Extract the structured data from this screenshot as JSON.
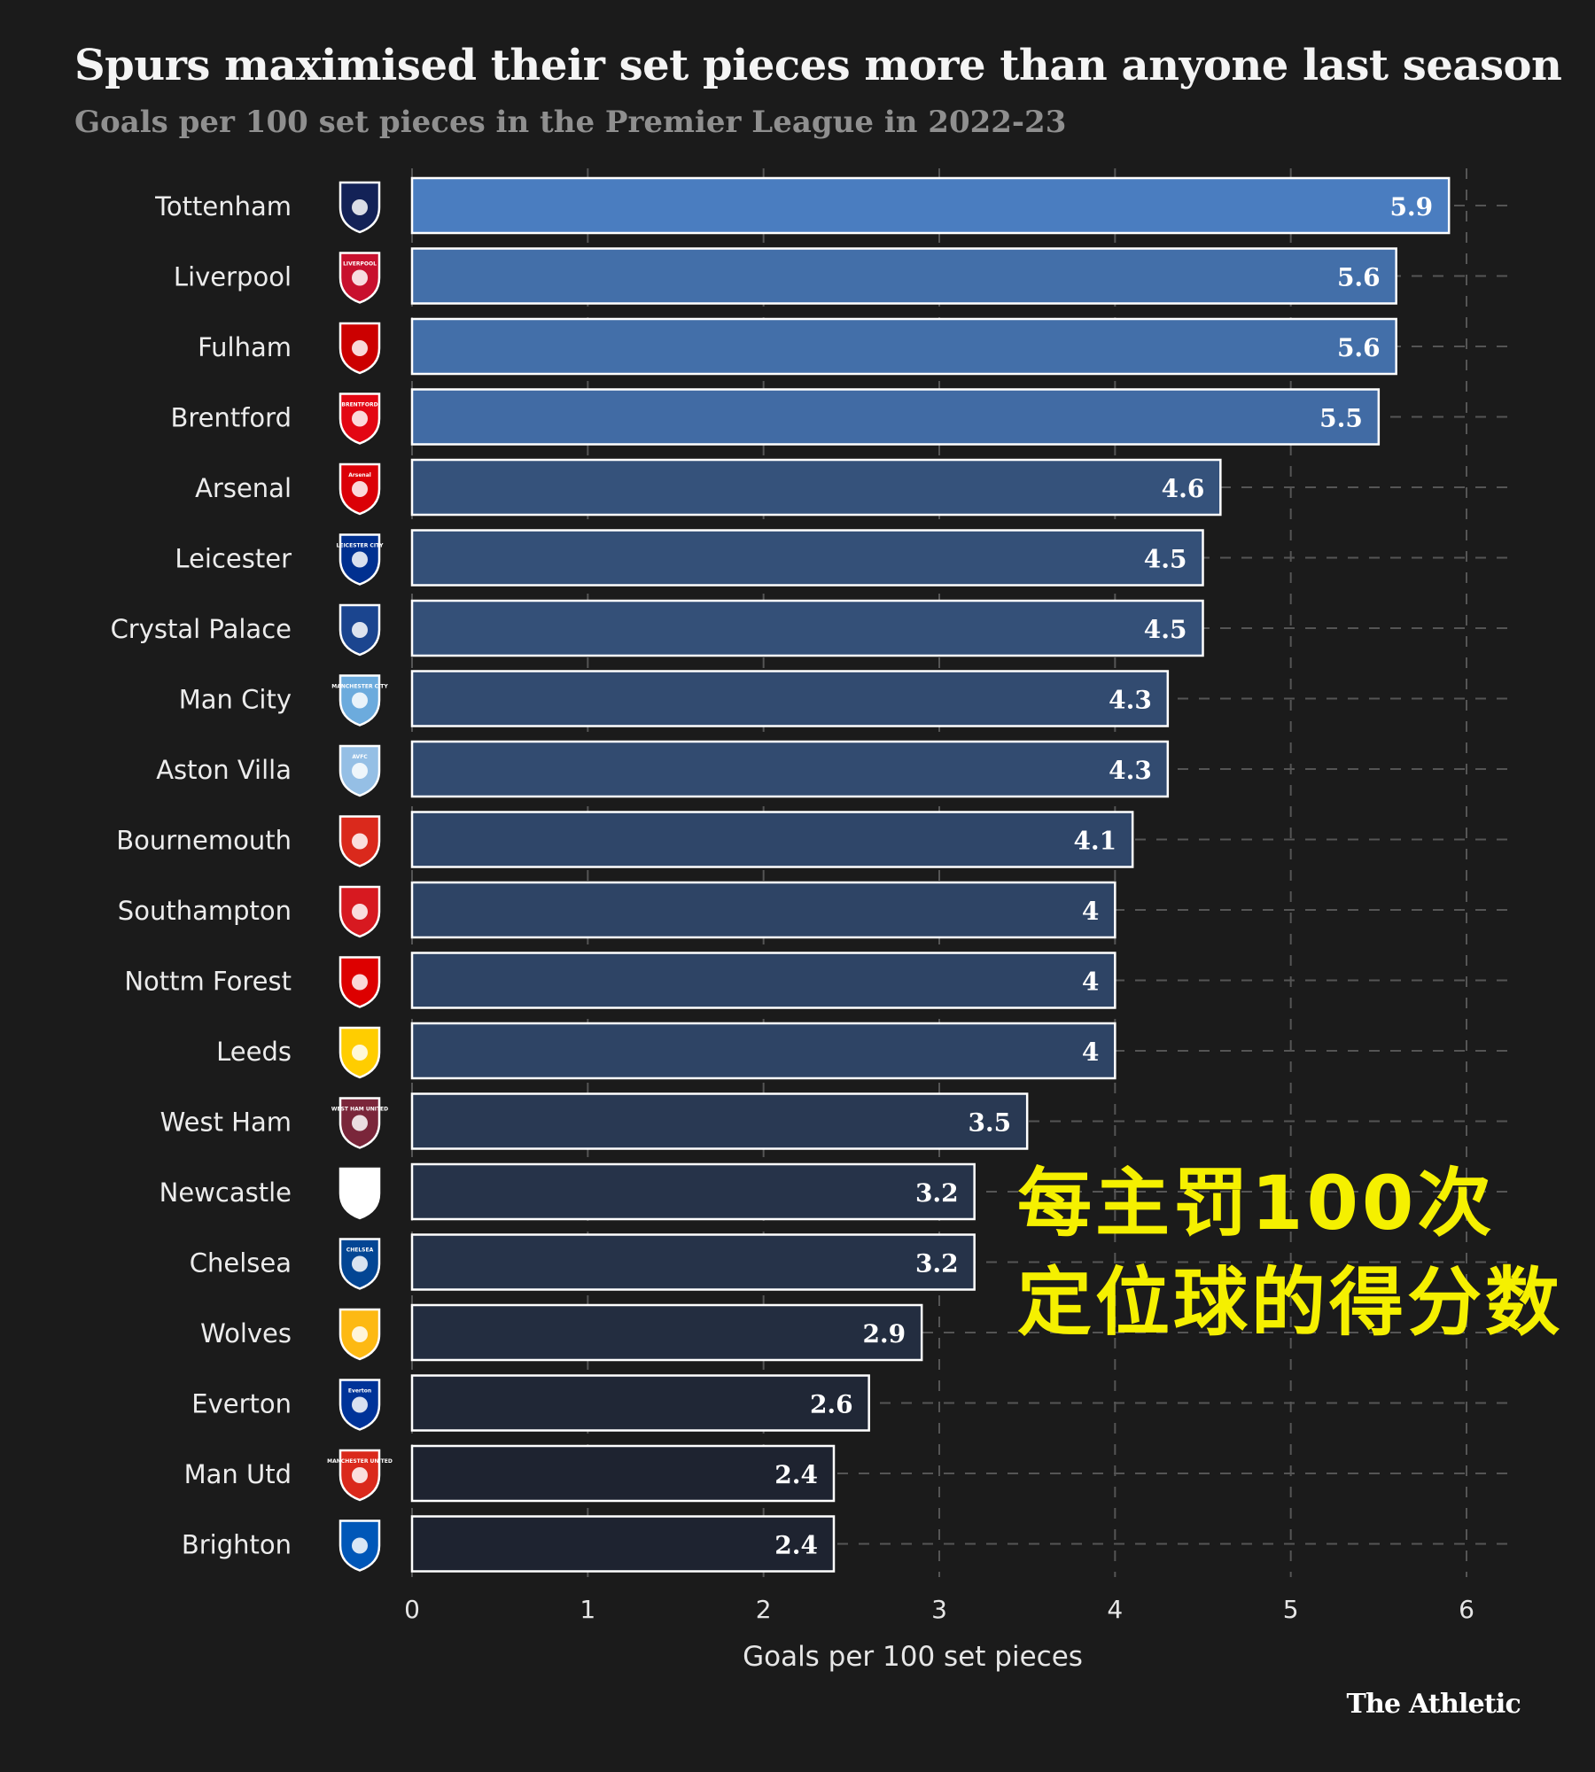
{
  "title": "Spurs maximised their set pieces more than anyone last season",
  "subtitle": "Goals per 100 set pieces in the Premier League in 2022-23",
  "overlay_text": {
    "line1": "每主罚100次",
    "line2": "定位球的得分数"
  },
  "brand": "The Athletic",
  "colors": {
    "background": "#1b1b1b",
    "bar_top": "#4a7dc0",
    "bar_bottom": "#1e2330",
    "bar_outline": "#ffffff",
    "grid": "#555555",
    "overlay": "#f5f000"
  },
  "chart_data": {
    "type": "bar",
    "orientation": "horizontal",
    "xlabel": "Goals per 100 set pieces",
    "xlim": [
      0,
      6
    ],
    "xticks": [
      0,
      1,
      2,
      3,
      4,
      5,
      6
    ],
    "grid": "vertical dashed",
    "categories": [
      "Tottenham",
      "Liverpool",
      "Fulham",
      "Brentford",
      "Arsenal",
      "Leicester",
      "Crystal Palace",
      "Man City",
      "Aston Villa",
      "Bournemouth",
      "Southampton",
      "Nottm Forest",
      "Leeds",
      "West Ham",
      "Newcastle",
      "Chelsea",
      "Wolves",
      "Everton",
      "Man Utd",
      "Brighton"
    ],
    "values": [
      5.9,
      5.6,
      5.6,
      5.5,
      4.6,
      4.5,
      4.5,
      4.3,
      4.3,
      4.1,
      4,
      4,
      4,
      3.5,
      3.2,
      3.2,
      2.9,
      2.6,
      2.4,
      2.4
    ],
    "value_labels": [
      "5.9",
      "5.6",
      "5.6",
      "5.5",
      "4.6",
      "4.5",
      "4.5",
      "4.3",
      "4.3",
      "4.1",
      "4",
      "4",
      "4",
      "3.5",
      "3.2",
      "3.2",
      "2.9",
      "2.6",
      "2.4",
      "2.4"
    ],
    "crests": [
      {
        "icon": "tottenham-crest-icon",
        "color": "#132257",
        "text": ""
      },
      {
        "icon": "liverpool-crest-icon",
        "color": "#c8102e",
        "text": "LIVERPOOL"
      },
      {
        "icon": "fulham-crest-icon",
        "color": "#cc0000",
        "text": ""
      },
      {
        "icon": "brentford-crest-icon",
        "color": "#e30613",
        "text": "BRENTFORD"
      },
      {
        "icon": "arsenal-crest-icon",
        "color": "#db0007",
        "text": "Arsenal"
      },
      {
        "icon": "leicester-crest-icon",
        "color": "#003090",
        "text": "LEICESTER CITY"
      },
      {
        "icon": "crystal-palace-crest-icon",
        "color": "#1b458f",
        "text": ""
      },
      {
        "icon": "man-city-crest-icon",
        "color": "#6cabdd",
        "text": "MANCHESTER CITY"
      },
      {
        "icon": "aston-villa-crest-icon",
        "color": "#95bfe5",
        "text": "AVFC"
      },
      {
        "icon": "bournemouth-crest-icon",
        "color": "#da291c",
        "text": ""
      },
      {
        "icon": "southampton-crest-icon",
        "color": "#d71920",
        "text": ""
      },
      {
        "icon": "nottm-forest-crest-icon",
        "color": "#dd0000",
        "text": ""
      },
      {
        "icon": "leeds-crest-icon",
        "color": "#ffcd00",
        "text": ""
      },
      {
        "icon": "west-ham-crest-icon",
        "color": "#7a263a",
        "text": "WEST HAM UNITED"
      },
      {
        "icon": "newcastle-crest-icon",
        "color": "#ffffff",
        "text": ""
      },
      {
        "icon": "chelsea-crest-icon",
        "color": "#034694",
        "text": "CHELSEA"
      },
      {
        "icon": "wolves-crest-icon",
        "color": "#fdb913",
        "text": ""
      },
      {
        "icon": "everton-crest-icon",
        "color": "#003399",
        "text": "Everton"
      },
      {
        "icon": "man-utd-crest-icon",
        "color": "#da291c",
        "text": "MANCHESTER UNITED"
      },
      {
        "icon": "brighton-crest-icon",
        "color": "#0057b8",
        "text": ""
      }
    ]
  }
}
